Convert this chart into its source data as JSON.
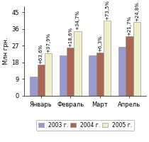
{
  "months": [
    "Январь",
    "Февраль",
    "Март",
    "Апрель"
  ],
  "values_2003": [
    10.2,
    21.8,
    21.9,
    26.2
  ],
  "values_2004": [
    16.7,
    25.9,
    23.3,
    31.9
  ],
  "values_2005": [
    23.0,
    34.9,
    40.4,
    39.8
  ],
  "labels_2004": [
    "+63,6%",
    "+18,6%",
    "+6,3%",
    "+21,7%"
  ],
  "labels_2005": [
    "+37,9%",
    "+34,7%",
    "+73,5%",
    "+24,8%"
  ],
  "color_2003": "#9999cc",
  "color_2004": "#aa6655",
  "color_2005": "#eeeecc",
  "ylabel": "Млн грн.",
  "ylim": [
    0,
    48
  ],
  "yticks": [
    0,
    9,
    18,
    27,
    36,
    45
  ],
  "legend_labels": [
    "2003 г.",
    "2004 г.",
    "2005 г."
  ],
  "bar_width": 0.25,
  "fontsize_label": 5.0,
  "fontsize_tick": 6.0,
  "fontsize_legend": 5.5,
  "fontsize_ylabel": 6.0
}
